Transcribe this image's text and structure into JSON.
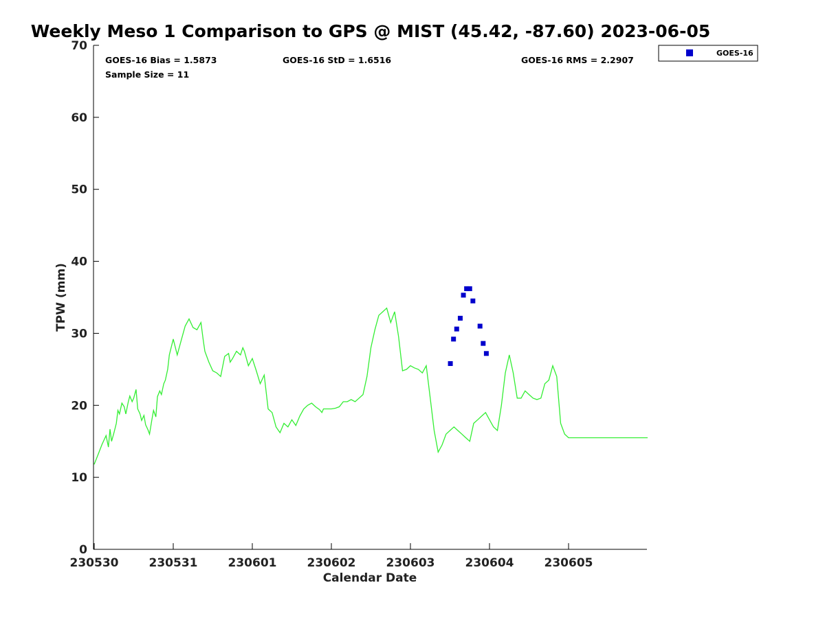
{
  "chart_data": {
    "type": "scatter",
    "title": "Weekly Meso 1 Comparison to GPS @ MIST (45.42, -87.60) 2023-06-05",
    "xlabel": "Calendar Date",
    "ylabel": "TPW (mm)",
    "xlim": [
      0,
      7
    ],
    "ylim": [
      0,
      70
    ],
    "x_tick_values": [
      0,
      1,
      2,
      3,
      4,
      5,
      6
    ],
    "x_tick_labels": [
      "230530",
      "230531",
      "230601",
      "230602",
      "230603",
      "230604",
      "230605"
    ],
    "y_tick_values": [
      0,
      10,
      20,
      30,
      40,
      50,
      60,
      70
    ],
    "y_tick_labels": [
      "0",
      "10",
      "20",
      "30",
      "40",
      "50",
      "60",
      "70"
    ],
    "stats": {
      "bias": "GOES-16 Bias = 1.5873",
      "std": "GOES-16 StD = 1.6516",
      "rms": "GOES-16 RMS = 2.2907",
      "sample": "Sample Size = 11"
    },
    "legend": {
      "position": "outside-top-right",
      "entries": [
        "GOES-16"
      ]
    },
    "grid": false,
    "series": [
      {
        "name": "GPS",
        "kind": "line",
        "color": "#33ee33",
        "x": [
          0.0,
          0.05,
          0.1,
          0.15,
          0.18,
          0.2,
          0.22,
          0.25,
          0.28,
          0.3,
          0.32,
          0.35,
          0.38,
          0.4,
          0.43,
          0.45,
          0.48,
          0.5,
          0.53,
          0.55,
          0.58,
          0.6,
          0.63,
          0.65,
          0.68,
          0.7,
          0.73,
          0.75,
          0.78,
          0.8,
          0.83,
          0.85,
          0.88,
          0.9,
          0.93,
          0.95,
          1.0,
          1.05,
          1.1,
          1.15,
          1.2,
          1.25,
          1.3,
          1.35,
          1.38,
          1.4,
          1.45,
          1.5,
          1.55,
          1.6,
          1.65,
          1.7,
          1.72,
          1.75,
          1.8,
          1.85,
          1.88,
          1.9,
          1.95,
          2.0,
          2.05,
          2.1,
          2.15,
          2.2,
          2.25,
          2.3,
          2.35,
          2.4,
          2.45,
          2.5,
          2.55,
          2.6,
          2.65,
          2.7,
          2.75,
          2.8,
          2.85,
          2.88,
          2.9,
          2.95,
          3.0,
          3.05,
          3.1,
          3.15,
          3.2,
          3.25,
          3.3,
          3.35,
          3.4,
          3.45,
          3.5,
          3.55,
          3.6,
          3.65,
          3.7,
          3.75,
          3.8,
          3.85,
          3.9,
          3.95,
          4.0,
          4.05,
          4.1,
          4.15,
          4.2,
          4.25,
          4.3,
          4.35,
          4.4,
          4.45,
          4.5,
          4.55,
          4.6,
          4.65,
          4.7,
          4.75,
          4.8,
          4.85,
          4.9,
          4.95,
          5.0,
          5.05,
          5.1,
          5.15,
          5.2,
          5.25,
          5.3,
          5.35,
          5.4,
          5.45,
          5.5,
          5.55,
          5.6,
          5.65,
          5.7,
          5.75,
          5.8,
          5.85,
          5.9,
          5.95,
          6.0,
          6.05,
          6.1,
          6.15,
          6.2,
          6.25,
          6.3,
          6.35,
          6.4,
          6.45,
          6.5,
          6.55,
          6.6,
          6.65,
          6.7,
          6.75,
          6.8,
          6.85,
          6.9,
          6.95,
          7.0
        ],
        "y": [
          11.8,
          13.2,
          14.6,
          15.8,
          14.2,
          16.7,
          15.0,
          16.2,
          17.5,
          19.3,
          18.8,
          20.3,
          19.8,
          18.8,
          20.4,
          21.3,
          20.5,
          21.0,
          22.2,
          19.5,
          18.8,
          17.9,
          18.6,
          17.3,
          16.6,
          16.0,
          18.0,
          19.3,
          18.4,
          21.2,
          22.0,
          21.5,
          23.0,
          23.5,
          25.0,
          27.0,
          29.2,
          27.0,
          29.0,
          31.0,
          32.0,
          30.8,
          30.5,
          31.5,
          29.0,
          27.5,
          26.0,
          24.8,
          24.5,
          24.0,
          26.8,
          27.2,
          26.0,
          26.5,
          27.5,
          27.0,
          28.0,
          27.5,
          25.5,
          26.5,
          24.8,
          23.0,
          24.2,
          19.5,
          19.0,
          17.0,
          16.2,
          17.5,
          17.0,
          18.0,
          17.2,
          18.5,
          19.5,
          20.0,
          20.3,
          19.8,
          19.4,
          19.0,
          19.5,
          19.5,
          19.5,
          19.6,
          19.8,
          20.5,
          20.5,
          20.8,
          20.5,
          21.0,
          21.5,
          24.0,
          28.0,
          30.5,
          32.5,
          33.0,
          33.5,
          31.5,
          33.0,
          29.5,
          24.8,
          25.0,
          25.5,
          25.2,
          25.0,
          24.5,
          25.5,
          21.0,
          16.5,
          13.5,
          14.5,
          16.0,
          16.5,
          17.0,
          16.5,
          16.0,
          15.5,
          15.0,
          17.5,
          18.0,
          18.5,
          19.0,
          18.0,
          17.0,
          16.5,
          20.0,
          24.5,
          27.0,
          24.5,
          21.0,
          21.0,
          22.0,
          21.5,
          21.0,
          20.8,
          21.0,
          23.0,
          23.5,
          25.5,
          24.0,
          17.5,
          16.0,
          15.5,
          15.5,
          15.5,
          15.5,
          15.5,
          15.5,
          15.5,
          15.5,
          15.5,
          15.5,
          15.5,
          15.5,
          15.5,
          15.5,
          15.5,
          15.5,
          15.5,
          15.5,
          15.5,
          15.5,
          15.5
        ]
      },
      {
        "name": "GOES-16",
        "kind": "markers",
        "color": "#0000cc",
        "x": [
          4.505,
          4.545,
          4.585,
          4.63,
          4.67,
          4.71,
          4.75,
          4.79,
          4.88,
          4.92,
          4.96
        ],
        "y": [
          25.8,
          29.2,
          30.6,
          32.1,
          35.3,
          36.2,
          36.2,
          34.5,
          31.0,
          28.6,
          27.2
        ]
      }
    ]
  }
}
